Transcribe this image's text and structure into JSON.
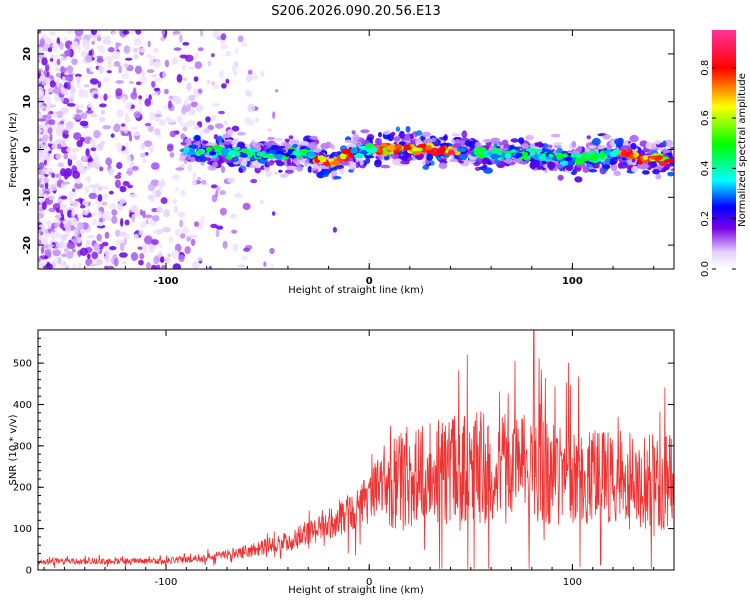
{
  "figure": {
    "title": "S206.2026.090.20.56.E13"
  },
  "chart_data": [
    {
      "type": "heatmap",
      "xlabel": "Height of straight line (km)",
      "ylabel": "Frequency (Hz)",
      "xlim": [
        -163,
        150
      ],
      "ylim": [
        -25,
        25
      ],
      "x_ticks": [
        -100,
        0,
        100
      ],
      "y_ticks": [
        -20,
        -10,
        0,
        10,
        20
      ],
      "colorbar": {
        "label": "Normalized spectral amplitude",
        "range": [
          0,
          0.95
        ],
        "ticks": [
          0.0,
          0.2,
          0.4,
          0.6,
          0.8
        ]
      },
      "ridge": {
        "description_points_x": [
          -90,
          -60,
          -30,
          -20,
          -10,
          0,
          20,
          40,
          60,
          80,
          100,
          120,
          145
        ],
        "description_points_freq": [
          0,
          -1,
          -1,
          -3,
          -1,
          0,
          0,
          0,
          -1,
          -1,
          -2,
          -1,
          -2
        ]
      }
    },
    {
      "type": "line",
      "xlabel": "Height of straight line (km)",
      "ylabel": "SNR (10 * v/v)",
      "xlim": [
        -163,
        150
      ],
      "ylim": [
        0,
        580
      ],
      "x_ticks": [
        -100,
        0,
        100
      ],
      "y_ticks": [
        0,
        100,
        200,
        300,
        400,
        500
      ],
      "series": [
        {
          "name": "SNR",
          "color": "#ee3333",
          "envelope_x": [
            -163,
            -100,
            -80,
            -60,
            -40,
            -20,
            -10,
            0,
            5,
            10,
            20,
            40,
            60,
            80,
            100,
            120,
            150
          ],
          "envelope_mean": [
            20,
            22,
            30,
            45,
            70,
            110,
            140,
            170,
            220,
            200,
            230,
            240,
            250,
            240,
            230,
            220,
            210
          ],
          "peak": [
            81,
            580
          ]
        }
      ]
    }
  ]
}
